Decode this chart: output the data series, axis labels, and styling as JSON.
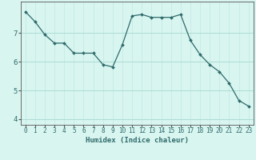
{
  "x": [
    0,
    1,
    2,
    3,
    4,
    5,
    6,
    7,
    8,
    9,
    10,
    11,
    12,
    13,
    14,
    15,
    16,
    17,
    18,
    19,
    20,
    21,
    22,
    23
  ],
  "y": [
    7.75,
    7.4,
    6.95,
    6.65,
    6.65,
    6.3,
    6.3,
    6.3,
    5.9,
    5.82,
    6.6,
    7.6,
    7.65,
    7.55,
    7.55,
    7.55,
    7.65,
    6.75,
    6.25,
    5.9,
    5.65,
    5.25,
    4.65,
    4.45
  ],
  "line_color": "#2e6b6b",
  "marker": "D",
  "marker_size": 2.0,
  "bg_color": "#d8f5f0",
  "grid_color": "#aaddd4",
  "grid_vcolor": "#c8ece6",
  "xlabel": "Humidex (Indice chaleur)",
  "ylim": [
    3.8,
    8.1
  ],
  "xlim": [
    -0.5,
    23.5
  ],
  "yticks": [
    4,
    5,
    6,
    7
  ],
  "xticks": [
    0,
    1,
    2,
    3,
    4,
    5,
    6,
    7,
    8,
    9,
    10,
    11,
    12,
    13,
    14,
    15,
    16,
    17,
    18,
    19,
    20,
    21,
    22,
    23
  ],
  "xlabel_fontsize": 6.5,
  "tick_fontsize": 5.5,
  "spine_color": "#555555"
}
